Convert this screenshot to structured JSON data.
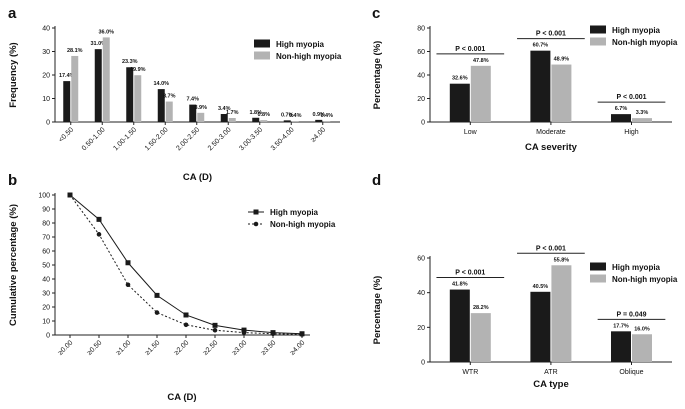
{
  "colors": {
    "high": "#1a1a1a",
    "nonhigh": "#b3b3b3",
    "axis": "#222222"
  },
  "chart_data": [
    {
      "id": "a",
      "type": "bar",
      "panel_label": "a",
      "title": "",
      "xlabel": "CA (D)",
      "ylabel": "Frequency (%)",
      "ylim": [
        0,
        40
      ],
      "yticks": [
        "0",
        "10",
        "20",
        "30",
        "40"
      ],
      "categories": [
        "<0.50",
        "0.50-1.00",
        "1.00-1.50",
        "1.50-2.00",
        "2.00-2.50",
        "2.50-3.00",
        "3.00-3.50",
        "3.50-4.00",
        "≥4.00"
      ],
      "series": [
        {
          "name": "High myopia",
          "values": [
            17.4,
            31.0,
            23.3,
            14.0,
            7.4,
            3.4,
            1.8,
            0.7,
            0.9
          ],
          "labels": [
            "17.4%",
            "31.0%",
            "23.3%",
            "14.0%",
            "7.4%",
            "3.4%",
            "1.8%",
            "0.7%",
            "0.9%"
          ]
        },
        {
          "name": "Non-high myopia",
          "values": [
            28.1,
            36.0,
            19.9,
            8.7,
            3.9,
            1.7,
            0.8,
            0.4,
            0.4
          ],
          "labels": [
            "28.1%",
            "36.0%",
            "19.9%",
            "8.7%",
            "3.9%",
            "1.7%",
            "0.8%",
            "0.4%",
            "0.4%"
          ]
        }
      ],
      "legend": "top-right"
    },
    {
      "id": "b",
      "type": "line",
      "panel_label": "b",
      "title": "",
      "xlabel": "CA (D)",
      "ylabel": "Cumulative percentage (%)",
      "ylim": [
        0,
        100
      ],
      "yticks": [
        "0",
        "10",
        "20",
        "30",
        "40",
        "50",
        "60",
        "70",
        "80",
        "90",
        "100"
      ],
      "categories": [
        "≥0.00",
        "≥0.50",
        "≥1.00",
        "≥1.50",
        "≥2.00",
        "≥2.50",
        "≥3.00",
        "≥3.50",
        "≥4.00"
      ],
      "series": [
        {
          "name": "High myopia",
          "values": [
            100,
            82.6,
            51.6,
            28.3,
            14.3,
            6.9,
            3.5,
            1.7,
            0.9
          ],
          "marker": "square",
          "style": "solid"
        },
        {
          "name": "Non-high myopia",
          "values": [
            100,
            71.9,
            35.9,
            16.0,
            7.3,
            3.4,
            1.7,
            0.9,
            0.4
          ],
          "marker": "circle",
          "style": "dashed"
        }
      ],
      "legend": "top-right"
    },
    {
      "id": "c",
      "type": "bar",
      "panel_label": "c",
      "title": "",
      "xlabel": "CA severity",
      "ylabel": "Percentage (%)",
      "ylim": [
        0,
        80
      ],
      "yticks": [
        "0",
        "20",
        "40",
        "60",
        "80"
      ],
      "categories": [
        "Low",
        "Moderate",
        "High"
      ],
      "series": [
        {
          "name": "High myopia",
          "values": [
            32.6,
            60.7,
            6.7
          ],
          "labels": [
            "32.6%",
            "60.7%",
            "6.7%"
          ]
        },
        {
          "name": "Non-high myopia",
          "values": [
            47.8,
            48.9,
            3.3
          ],
          "labels": [
            "47.8%",
            "48.9%",
            "3.3%"
          ]
        }
      ],
      "pvalues": [
        "P < 0.001",
        "P < 0.001",
        "P < 0.001"
      ],
      "legend": "top-right"
    },
    {
      "id": "d",
      "type": "bar",
      "panel_label": "d",
      "title": "",
      "xlabel": "CA type",
      "ylabel": "Percentage (%)",
      "ylim": [
        0,
        60
      ],
      "yticks": [
        "0",
        "20",
        "40",
        "60"
      ],
      "categories": [
        "WTR",
        "ATR",
        "Oblique"
      ],
      "series": [
        {
          "name": "High myopia",
          "values": [
            41.8,
            40.5,
            17.7
          ],
          "labels": [
            "41.8%",
            "40.5%",
            "17.7%"
          ]
        },
        {
          "name": "Non-high myopia",
          "values": [
            28.2,
            55.8,
            16.0
          ],
          "labels": [
            "28.2%",
            "55.8%",
            "16.0%"
          ]
        }
      ],
      "pvalues": [
        "P < 0.001",
        "P < 0.001",
        "P = 0.049"
      ],
      "legend": "top-right"
    }
  ]
}
